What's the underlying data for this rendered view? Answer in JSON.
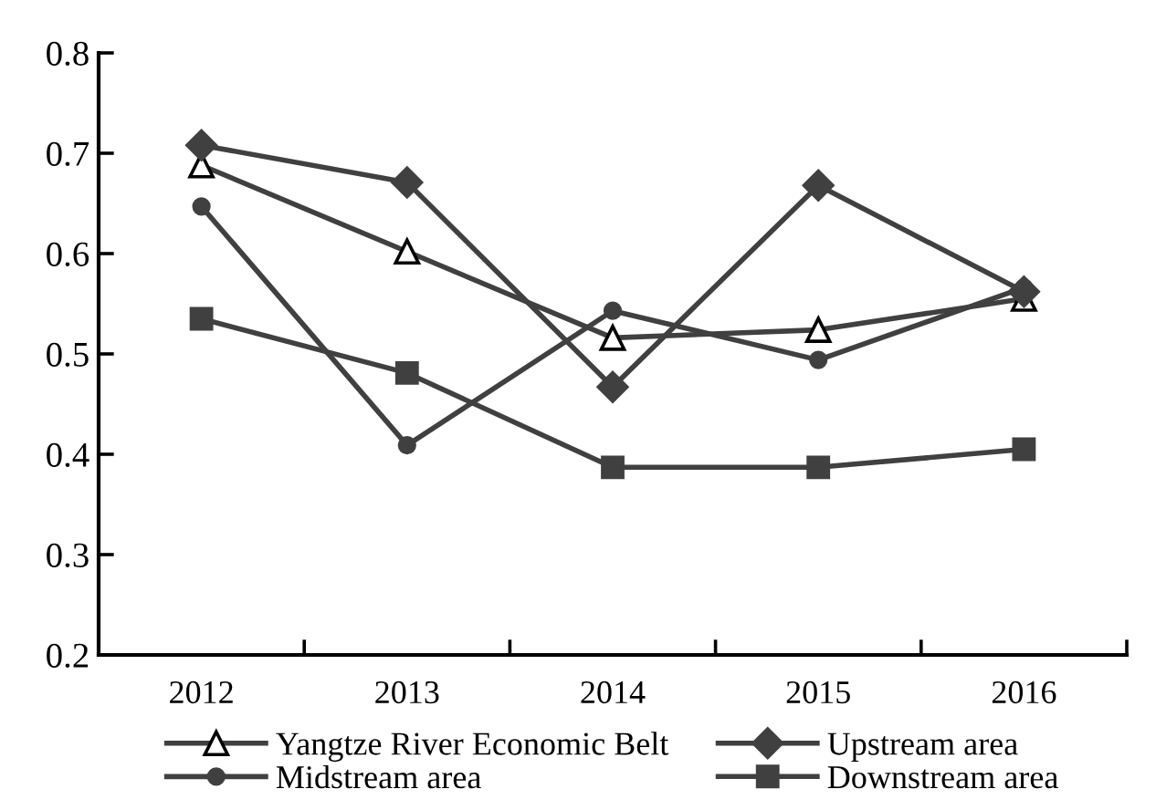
{
  "chart_data": {
    "type": "line",
    "categories": [
      "2012",
      "2013",
      "2014",
      "2015",
      "2016"
    ],
    "ylim": [
      0.2,
      0.8
    ],
    "yticks": [
      0.2,
      0.3,
      0.4,
      0.5,
      0.6,
      0.7,
      0.8
    ],
    "grid": false,
    "legend": "bottom",
    "line_style": "solid",
    "series": [
      {
        "name": "Yangtze River Economic Belt",
        "color": "#404040",
        "marker": "triangle",
        "values": [
          0.688,
          0.602,
          0.516,
          0.524,
          0.555
        ]
      },
      {
        "name": "Upstream area",
        "color": "#404040",
        "marker": "diamond",
        "values": [
          0.708,
          0.671,
          0.467,
          0.668,
          0.562
        ]
      },
      {
        "name": "Midstream area",
        "color": "#404040",
        "marker": "circle",
        "values": [
          0.647,
          0.409,
          0.543,
          0.494,
          0.566
        ]
      },
      {
        "name": "Downstream area",
        "color": "#404040",
        "marker": "square",
        "values": [
          0.535,
          0.481,
          0.387,
          0.387,
          0.405
        ]
      }
    ]
  }
}
